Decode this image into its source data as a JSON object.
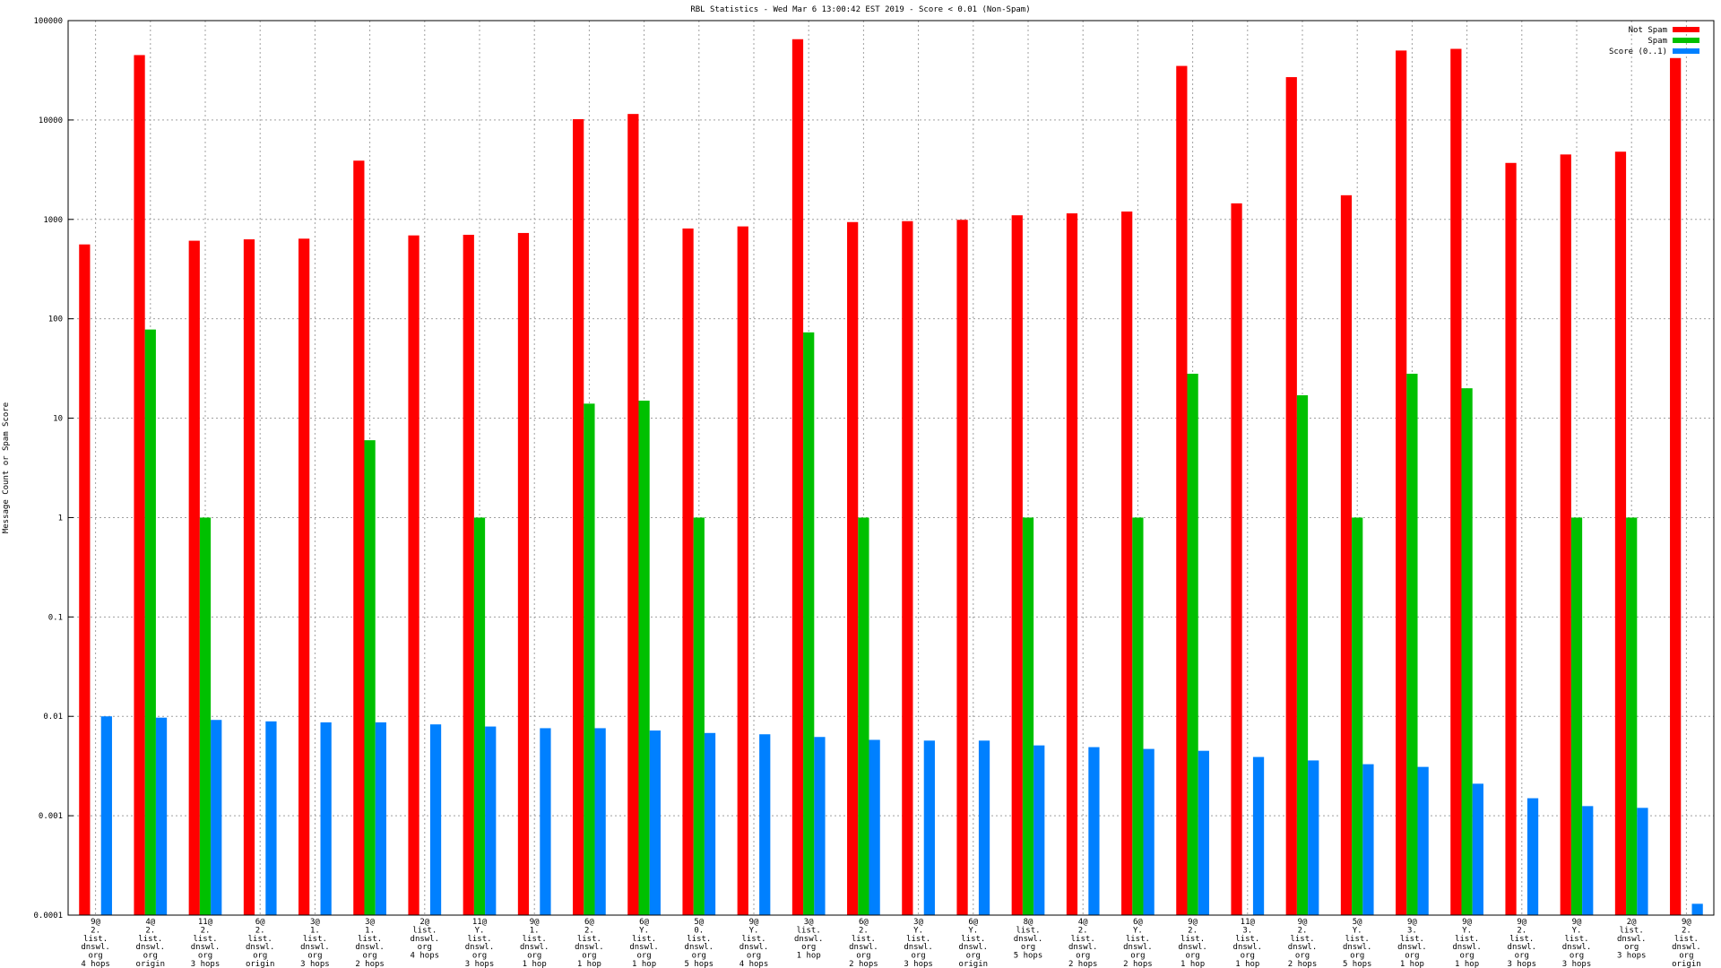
{
  "chart_data": {
    "type": "bar",
    "title": "RBL Statistics - Wed Mar  6 13:00:42 EST 2019 - Score < 0.01 (Non-Spam)",
    "y_label": "Message Count or Spam Score",
    "log_scale": true,
    "grid": true,
    "legend": "upper right",
    "ylim": [
      0.0001,
      100000
    ],
    "yticks": [
      0.0001,
      0.001,
      0.01,
      0.1,
      1,
      10,
      100,
      1000,
      10000,
      100000
    ],
    "categories": [
      [
        "9@",
        "2.",
        "list.",
        "dnswl.",
        "org",
        "4 hops"
      ],
      [
        "4@",
        "2.",
        "list.",
        "dnswl.",
        "org",
        "origin"
      ],
      [
        "11@",
        "2.",
        "list.",
        "dnswl.",
        "org",
        "3 hops"
      ],
      [
        "6@",
        "2.",
        "list.",
        "dnswl.",
        "org",
        "origin"
      ],
      [
        "3@",
        "1.",
        "list.",
        "dnswl.",
        "org",
        "3 hops"
      ],
      [
        "3@",
        "1.",
        "list.",
        "dnswl.",
        "org",
        "2 hops"
      ],
      [
        "2@",
        "list.",
        "dnswl.",
        "org",
        "4 hops"
      ],
      [
        "11@",
        "Y.",
        "list.",
        "dnswl.",
        "org",
        "3 hops"
      ],
      [
        "9@",
        "1.",
        "list.",
        "dnswl.",
        "org",
        "1 hop"
      ],
      [
        "6@",
        "2.",
        "list.",
        "dnswl.",
        "org",
        "1 hop"
      ],
      [
        "6@",
        "Y.",
        "list.",
        "dnswl.",
        "org",
        "1 hop"
      ],
      [
        "5@",
        "0.",
        "list.",
        "dnswl.",
        "org",
        "5 hops"
      ],
      [
        "9@",
        "Y.",
        "list.",
        "dnswl.",
        "org",
        "4 hops"
      ],
      [
        "3@",
        "list.",
        "dnswl.",
        "org",
        "1 hop"
      ],
      [
        "6@",
        "2.",
        "list.",
        "dnswl.",
        "org",
        "2 hops"
      ],
      [
        "3@",
        "Y.",
        "list.",
        "dnswl.",
        "org",
        "3 hops"
      ],
      [
        "6@",
        "Y.",
        "list.",
        "dnswl.",
        "org",
        "origin"
      ],
      [
        "8@",
        "list.",
        "dnswl.",
        "org",
        "5 hops"
      ],
      [
        "4@",
        "2.",
        "list.",
        "dnswl.",
        "org",
        "2 hops"
      ],
      [
        "6@",
        "Y.",
        "list.",
        "dnswl.",
        "org",
        "2 hops"
      ],
      [
        "9@",
        "2.",
        "list.",
        "dnswl.",
        "org",
        "1 hop"
      ],
      [
        "11@",
        "3.",
        "list.",
        "dnswl.",
        "org",
        "1 hop"
      ],
      [
        "9@",
        "2.",
        "list.",
        "dnswl.",
        "org",
        "2 hops"
      ],
      [
        "5@",
        "Y.",
        "list.",
        "dnswl.",
        "org",
        "5 hops"
      ],
      [
        "9@",
        "3.",
        "list.",
        "dnswl.",
        "org",
        "1 hop"
      ],
      [
        "9@",
        "Y.",
        "list.",
        "dnswl.",
        "org",
        "1 hop"
      ],
      [
        "9@",
        "2.",
        "list.",
        "dnswl.",
        "org",
        "3 hops"
      ],
      [
        "9@",
        "Y.",
        "list.",
        "dnswl.",
        "org",
        "3 hops"
      ],
      [
        "2@",
        "list.",
        "dnswl.",
        "org",
        "3 hops"
      ],
      [
        "9@",
        "2.",
        "list.",
        "dnswl.",
        "org",
        "origin"
      ]
    ],
    "series": [
      {
        "name": "Not Spam",
        "color": "#ff0000",
        "values": [
          560,
          45000,
          610,
          630,
          640,
          3900,
          690,
          700,
          730,
          10200,
          11500,
          810,
          850,
          65000,
          940,
          960,
          990,
          1100,
          1150,
          1200,
          35000,
          1450,
          27000,
          1750,
          50000,
          52000,
          3700,
          4500,
          4800,
          42000
        ]
      },
      {
        "name": "Spam",
        "color": "#00c000",
        "values": [
          null,
          78,
          1,
          null,
          null,
          6,
          null,
          1,
          null,
          14,
          15,
          1,
          null,
          73,
          1,
          null,
          null,
          1,
          null,
          1,
          28,
          null,
          17,
          1,
          28,
          20,
          null,
          1,
          1,
          null
        ]
      },
      {
        "name": "Score (0..1)",
        "color": "#0080ff",
        "values": [
          0.01,
          0.0097,
          0.0092,
          0.0089,
          0.0087,
          0.0087,
          0.0083,
          0.0079,
          0.0076,
          0.0076,
          0.0072,
          0.0068,
          0.0066,
          0.0062,
          0.0058,
          0.0057,
          0.0057,
          0.0051,
          0.0049,
          0.0047,
          0.0045,
          0.0039,
          0.0036,
          0.0033,
          0.0031,
          0.0021,
          0.0015,
          0.00125,
          0.0012,
          0.00013
        ]
      }
    ]
  }
}
